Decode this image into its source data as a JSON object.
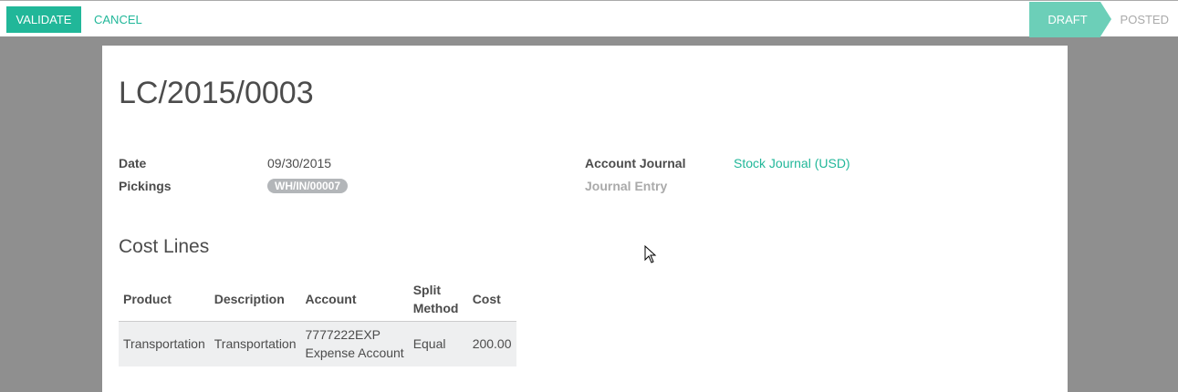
{
  "toolbar": {
    "validate": "VALIDATE",
    "cancel": "CANCEL"
  },
  "status": {
    "steps": [
      "DRAFT",
      "POSTED"
    ],
    "active": "DRAFT"
  },
  "record": {
    "title": "LC/2015/0003",
    "date_label": "Date",
    "date": "09/30/2015",
    "pickings_label": "Pickings",
    "picking": "WH/IN/00007",
    "journal_label": "Account Journal",
    "journal": "Stock Journal (USD)",
    "entry_label": "Journal Entry"
  },
  "cost_lines": {
    "title": "Cost Lines",
    "headers": [
      "Product",
      "Description",
      "Account",
      "Split Method",
      "Cost"
    ],
    "rows": [
      {
        "product": "Transportation",
        "description": "Transportation",
        "account_code": "7777222EXP",
        "account_name": "Expense Account",
        "split": "Equal",
        "cost": "200.00"
      }
    ]
  },
  "colors": {
    "accent": "#21b799",
    "draft": "#6ccfb8"
  }
}
